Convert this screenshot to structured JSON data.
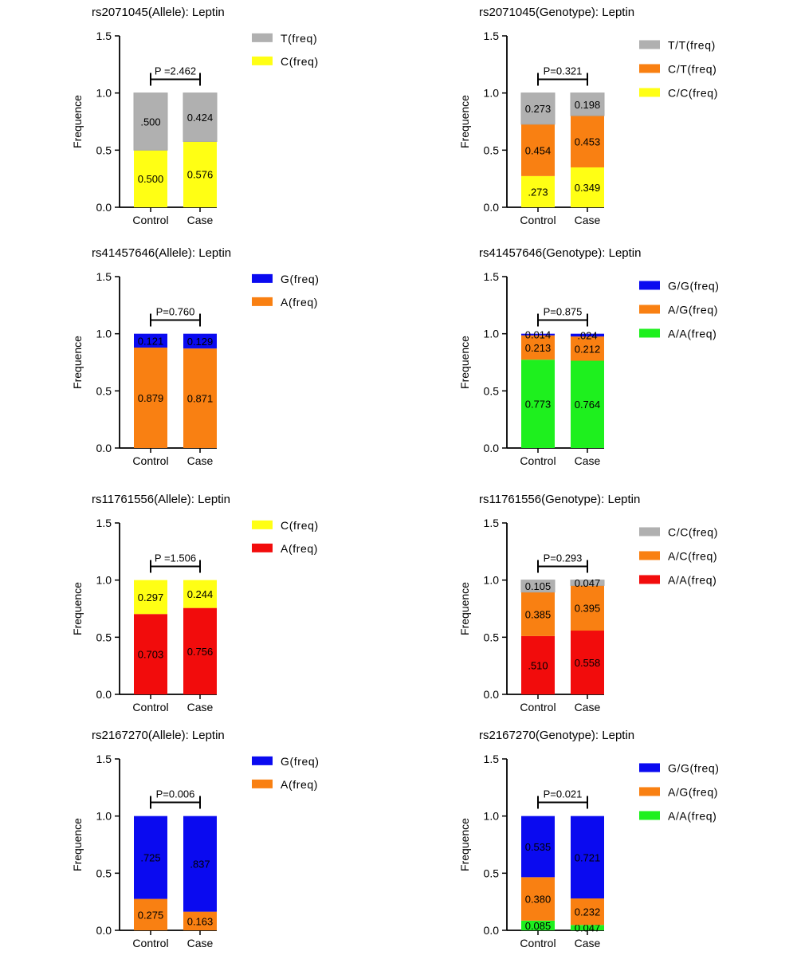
{
  "colors": {
    "gray": "#b0b0b0",
    "yellow": "#ffff14",
    "orange": "#f98012",
    "blue": "#0a0af0",
    "red": "#f20c0c",
    "green": "#1ef01e",
    "axis": "#000000"
  },
  "chart_data": [
    {
      "type": "bar",
      "stacked": true,
      "title": "rs2071045(Allele): Leptin",
      "ylabel": "Frequence",
      "ylim": [
        0,
        1.5
      ],
      "yticks": [
        "0.0",
        "0.5",
        "1.0",
        "1.5"
      ],
      "categories": [
        "Control",
        "Case"
      ],
      "p_label": "P =2.462",
      "series": [
        {
          "name": "C(freq)",
          "color": "yellow",
          "values": [
            0.5,
            0.576
          ],
          "labels": [
            "0.500",
            "0.576"
          ]
        },
        {
          "name": "T(freq)",
          "color": "gray",
          "values": [
            0.5,
            0.424
          ],
          "labels": [
            ".500",
            "0.424"
          ]
        }
      ],
      "legend": [
        "T(freq)",
        "C(freq)"
      ],
      "legend_colors": [
        "gray",
        "yellow"
      ]
    },
    {
      "type": "bar",
      "stacked": true,
      "title": "rs2071045(Genotype): Leptin",
      "ylabel": "Frequence",
      "ylim": [
        0,
        1.5
      ],
      "yticks": [
        "0.0",
        "0.5",
        "1.0",
        "1.5"
      ],
      "categories": [
        "Control",
        "Case"
      ],
      "p_label": "P=0.321",
      "series": [
        {
          "name": "C/C(freq)",
          "color": "yellow",
          "values": [
            0.273,
            0.349
          ],
          "labels": [
            ".273",
            "0.349"
          ]
        },
        {
          "name": "C/T(freq)",
          "color": "orange",
          "values": [
            0.454,
            0.453
          ],
          "labels": [
            "0.454",
            "0.453"
          ]
        },
        {
          "name": "T/T(freq)",
          "color": "gray",
          "values": [
            0.273,
            0.198
          ],
          "labels": [
            "0.273",
            "0.198"
          ]
        }
      ],
      "legend": [
        "T/T(freq)",
        "C/T(freq)",
        "C/C(freq)"
      ],
      "legend_colors": [
        "gray",
        "orange",
        "yellow"
      ]
    },
    {
      "type": "bar",
      "stacked": true,
      "title": "rs41457646(Allele): Leptin",
      "ylabel": "Frequence",
      "ylim": [
        0,
        1.5
      ],
      "yticks": [
        "0.0",
        "0.5",
        "1.0",
        "1.5"
      ],
      "categories": [
        "Control",
        "Case"
      ],
      "p_label": "P=0.760",
      "series": [
        {
          "name": "A(freq)",
          "color": "orange",
          "values": [
            0.879,
            0.871
          ],
          "labels": [
            "0.879",
            "0.871"
          ]
        },
        {
          "name": "G(freq)",
          "color": "blue",
          "values": [
            0.121,
            0.129
          ],
          "labels": [
            "0.121",
            "0.129"
          ]
        }
      ],
      "legend": [
        "G(freq)",
        "A(freq)"
      ],
      "legend_colors": [
        "blue",
        "orange"
      ]
    },
    {
      "type": "bar",
      "stacked": true,
      "title": "rs41457646(Genotype): Leptin",
      "ylabel": "Frequence",
      "ylim": [
        0,
        1.5
      ],
      "yticks": [
        "0.0",
        "0.5",
        "1.0",
        "1.5"
      ],
      "categories": [
        "Control",
        "Case"
      ],
      "p_label": "P=0.875",
      "series": [
        {
          "name": "A/A(freq)",
          "color": "green",
          "values": [
            0.773,
            0.764
          ],
          "labels": [
            "0.773",
            "0.764"
          ]
        },
        {
          "name": "A/G(freq)",
          "color": "orange",
          "values": [
            0.213,
            0.212
          ],
          "labels": [
            "0.213",
            "0.212"
          ]
        },
        {
          "name": "G/G(freq)",
          "color": "blue",
          "values": [
            0.014,
            0.024
          ],
          "labels": [
            "0.014",
            ".024"
          ]
        }
      ],
      "legend": [
        "G/G(freq)",
        "A/G(freq)",
        "A/A(freq)"
      ],
      "legend_colors": [
        "blue",
        "orange",
        "green"
      ]
    },
    {
      "type": "bar",
      "stacked": true,
      "title": "rs11761556(Allele): Leptin",
      "ylabel": "Frequence",
      "ylim": [
        0,
        1.5
      ],
      "yticks": [
        "0.0",
        "0.5",
        "1.0",
        "1.5"
      ],
      "categories": [
        "Control",
        "Case"
      ],
      "p_label": "P =1.506",
      "series": [
        {
          "name": "A(freq)",
          "color": "red",
          "values": [
            0.703,
            0.756
          ],
          "labels": [
            "0.703",
            "0.756"
          ]
        },
        {
          "name": "C(freq)",
          "color": "yellow",
          "values": [
            0.297,
            0.244
          ],
          "labels": [
            "0.297",
            "0.244"
          ]
        }
      ],
      "legend": [
        "C(freq)",
        "A(freq)"
      ],
      "legend_colors": [
        "yellow",
        "red"
      ]
    },
    {
      "type": "bar",
      "stacked": true,
      "title": "rs11761556(Genotype): Leptin",
      "ylabel": "Frequence",
      "ylim": [
        0,
        1.5
      ],
      "yticks": [
        "0.0",
        "0.5",
        "1.0",
        "1.5"
      ],
      "categories": [
        "Control",
        "Case"
      ],
      "p_label": "P=0.293",
      "series": [
        {
          "name": "A/A(freq)",
          "color": "red",
          "values": [
            0.51,
            0.558
          ],
          "labels": [
            ".510",
            "0.558"
          ]
        },
        {
          "name": "A/C(freq)",
          "color": "orange",
          "values": [
            0.385,
            0.395
          ],
          "labels": [
            "0.385",
            "0.395"
          ]
        },
        {
          "name": "C/C(freq)",
          "color": "gray",
          "values": [
            0.105,
            0.047
          ],
          "labels": [
            "0.105",
            "0.047"
          ]
        }
      ],
      "legend": [
        "C/C(freq)",
        "A/C(freq)",
        "A/A(freq)"
      ],
      "legend_colors": [
        "gray",
        "orange",
        "red"
      ]
    },
    {
      "type": "bar",
      "stacked": true,
      "title": "rs2167270(Allele): Leptin",
      "ylabel": "Frequence",
      "ylim": [
        0,
        1.5
      ],
      "yticks": [
        "0.0",
        "0.5",
        "1.0",
        "1.5"
      ],
      "categories": [
        "Control",
        "Case"
      ],
      "p_label": "P=0.006",
      "series": [
        {
          "name": "A(freq)",
          "color": "orange",
          "values": [
            0.275,
            0.163
          ],
          "labels": [
            "0.275",
            "0.163"
          ]
        },
        {
          "name": "G(freq)",
          "color": "blue",
          "values": [
            0.725,
            0.837
          ],
          "labels": [
            ".725",
            ".837"
          ]
        }
      ],
      "legend": [
        "G(freq)",
        "A(freq)"
      ],
      "legend_colors": [
        "blue",
        "orange"
      ]
    },
    {
      "type": "bar",
      "stacked": true,
      "title": "rs2167270(Genotype): Leptin",
      "ylabel": "Frequence",
      "ylim": [
        0,
        1.5
      ],
      "yticks": [
        "0.0",
        "0.5",
        "1.0",
        "1.5"
      ],
      "categories": [
        "Control",
        "Case"
      ],
      "p_label": "P=0.021",
      "series": [
        {
          "name": "A/A(freq)",
          "color": "green",
          "values": [
            0.085,
            0.047
          ],
          "labels": [
            "0.085",
            "0.047"
          ]
        },
        {
          "name": "A/G(freq)",
          "color": "orange",
          "values": [
            0.38,
            0.232
          ],
          "labels": [
            "0.380",
            "0.232"
          ]
        },
        {
          "name": "G/G(freq)",
          "color": "blue",
          "values": [
            0.535,
            0.721
          ],
          "labels": [
            "0.535",
            "0.721"
          ]
        }
      ],
      "legend": [
        "G/G(freq)",
        "A/G(freq)",
        "A/A(freq)"
      ],
      "legend_colors": [
        "blue",
        "orange",
        "green"
      ]
    }
  ]
}
